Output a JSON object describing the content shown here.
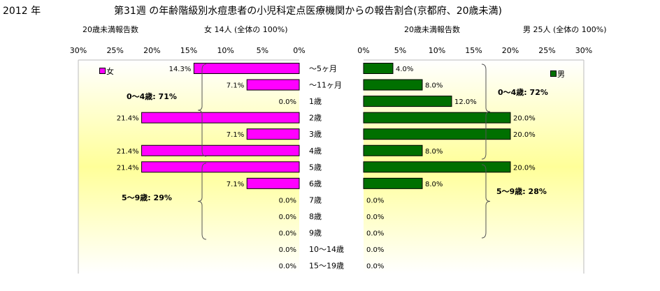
{
  "year": "2012 年",
  "title": "第31週 の年齢階級別水痘患者の小児科定点医療機関からの報告割合(京都府、20歳未満)",
  "female": {
    "report_label": "20歳未満報告数",
    "total_label": "女  14人 (全体の  100%)",
    "legend": "女",
    "group1": "0〜4歳: 71%",
    "group2": "5〜9歳: 29%",
    "color": "#ff00ff"
  },
  "male": {
    "report_label": "20歳未満報告数",
    "total_label": "男  25人 (全体の  100%)",
    "legend": "男",
    "group1": "0〜4歳: 72%",
    "group2": "5〜9歳: 28%",
    "color": "#007000"
  },
  "chart_data": {
    "type": "bar",
    "orientation": "horizontal-butterfly",
    "categories": [
      "〜5ヶ月",
      "〜11ヶ月",
      "1歳",
      "2歳",
      "3歳",
      "4歳",
      "5歳",
      "6歳",
      "7歳",
      "8歳",
      "9歳",
      "10〜14歳",
      "15〜19歳"
    ],
    "series": [
      {
        "name": "女",
        "values": [
          14.3,
          7.1,
          0.0,
          21.4,
          7.1,
          21.4,
          21.4,
          7.1,
          0.0,
          0.0,
          0.0,
          0.0,
          0.0
        ],
        "color": "#ff00ff"
      },
      {
        "name": "男",
        "values": [
          4.0,
          8.0,
          12.0,
          20.0,
          20.0,
          8.0,
          20.0,
          8.0,
          0.0,
          0.0,
          0.0,
          0.0,
          0.0
        ],
        "color": "#007000"
      }
    ],
    "female_ticks": [
      "30%",
      "25%",
      "20%",
      "15%",
      "10%",
      "5%",
      "0%"
    ],
    "male_ticks": [
      "0%",
      "5%",
      "10%",
      "15%",
      "20%",
      "25%",
      "30%"
    ],
    "xlim": [
      0,
      30
    ],
    "unit": "%"
  }
}
